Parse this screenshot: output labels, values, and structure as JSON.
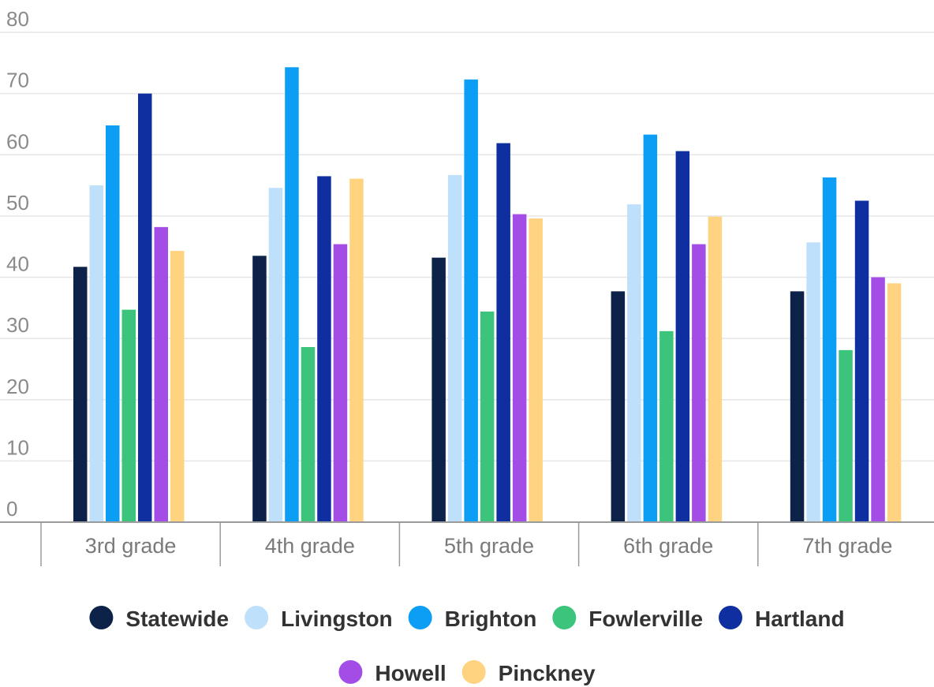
{
  "chart_data": {
    "type": "bar",
    "categories": [
      "3rd grade",
      "4th grade",
      "5th grade",
      "6th grade",
      "7th grade"
    ],
    "series": [
      {
        "name": "Statewide",
        "color": "#0c2249",
        "values": [
          41.7,
          43.5,
          43.2,
          37.7,
          37.7
        ]
      },
      {
        "name": "Livingston",
        "color": "#bfe0fb",
        "values": [
          55.0,
          54.6,
          56.7,
          51.9,
          45.7
        ]
      },
      {
        "name": "Brighton",
        "color": "#0c9ef5",
        "values": [
          64.8,
          74.3,
          72.3,
          63.3,
          56.3
        ]
      },
      {
        "name": "Fowlerville",
        "color": "#3cc47c",
        "values": [
          34.7,
          28.6,
          34.4,
          31.2,
          28.1
        ]
      },
      {
        "name": "Hartland",
        "color": "#0f2fa0",
        "values": [
          70.0,
          56.5,
          61.9,
          60.6,
          52.5
        ]
      },
      {
        "name": "Howell",
        "color": "#a44de6",
        "values": [
          48.2,
          45.4,
          50.3,
          45.4,
          40.0
        ]
      },
      {
        "name": "Pinckney",
        "color": "#ffd37f",
        "values": [
          44.3,
          56.1,
          49.6,
          49.9,
          39.0
        ]
      }
    ],
    "ylim": [
      0,
      80
    ],
    "yticks": [
      0,
      10,
      20,
      30,
      40,
      50,
      60,
      70,
      80
    ],
    "grid": true,
    "legend_position": "bottom"
  }
}
